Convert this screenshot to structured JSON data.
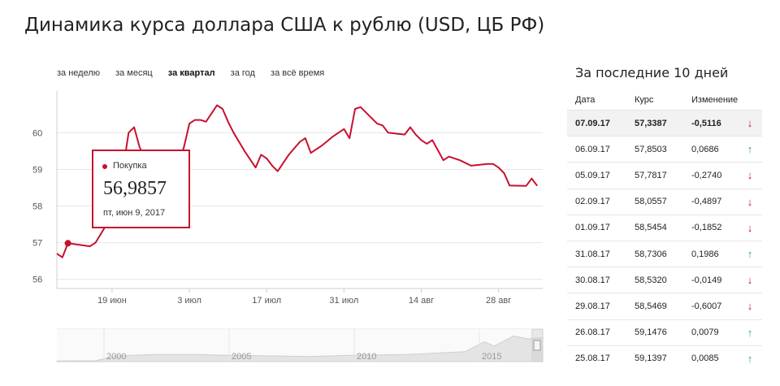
{
  "title": "Динамика курса доллара США к рублю (USD, ЦБ РФ)",
  "periods": [
    {
      "label": "за неделю",
      "active": false
    },
    {
      "label": "за месяц",
      "active": false
    },
    {
      "label": "за квартал",
      "active": true
    },
    {
      "label": "за год",
      "active": false
    },
    {
      "label": "за всё время",
      "active": false
    }
  ],
  "tooltip": {
    "label": "Покупка",
    "value": "56,9857",
    "date": "пт, июн 9, 2017"
  },
  "colors": {
    "line": "#c8102e",
    "grid": "#e6e6e6",
    "up": "#3aa84a",
    "down": "#c8102e"
  },
  "chart_data": {
    "type": "line",
    "title": "",
    "xlabel": "",
    "ylabel": "",
    "ylim": [
      55.75,
      61.05
    ],
    "y_ticks": [
      "56",
      "57",
      "58",
      "59",
      "60"
    ],
    "x_tick_labels": [
      "19 июн",
      "3 июл",
      "17 июл",
      "31 июл",
      "14 авг",
      "28 авг"
    ],
    "x_tick_days": [
      10,
      24,
      38,
      52,
      66,
      80
    ],
    "x_range_days": [
      0,
      88
    ],
    "series": [
      {
        "x": [
          0,
          1,
          2,
          6,
          7,
          9,
          12,
          13,
          14,
          15,
          16,
          20,
          21,
          22,
          23,
          24,
          25,
          26,
          27,
          29,
          30,
          31,
          32,
          34,
          36,
          37,
          38,
          39,
          40,
          42,
          44,
          45,
          46,
          48,
          50,
          51,
          52,
          53,
          54,
          55,
          58,
          59,
          60,
          63,
          64,
          65,
          66,
          67,
          68,
          70,
          71,
          73,
          75,
          78,
          79,
          80,
          81,
          82,
          85,
          86,
          87
        ],
        "y": [
          56.7,
          56.6,
          56.9857,
          56.9,
          57.0,
          57.5,
          59.0,
          60.0,
          60.15,
          59.6,
          59.3,
          59.2,
          59.0,
          59.2,
          59.6,
          60.25,
          60.35,
          60.35,
          60.3,
          60.75,
          60.65,
          60.3,
          60.0,
          59.5,
          59.05,
          59.4,
          59.3,
          59.1,
          58.95,
          59.4,
          59.75,
          59.85,
          59.45,
          59.65,
          59.9,
          60.0,
          60.1,
          59.85,
          60.65,
          60.7,
          60.25,
          60.2,
          60.0,
          59.95,
          60.15,
          59.95,
          59.8,
          59.7,
          59.8,
          59.25,
          59.35,
          59.25,
          59.1,
          59.15,
          59.15,
          59.05,
          58.9,
          58.56,
          58.55,
          58.75,
          58.55
        ]
      }
    ]
  },
  "navigator": {
    "labels": [
      "2000",
      "2005",
      "2010",
      "2015"
    ]
  },
  "sidebar": {
    "title": "За последние 10 дней",
    "headers": [
      "Дата",
      "Курс",
      "Изменение"
    ],
    "rows": [
      {
        "date": "07.09.17",
        "rate": "57,3387",
        "change": "-0,5116",
        "dir": "down",
        "arrow": "↓"
      },
      {
        "date": "06.09.17",
        "rate": "57,8503",
        "change": "0,0686",
        "dir": "up",
        "arrow": "↑"
      },
      {
        "date": "05.09.17",
        "rate": "57,7817",
        "change": "-0,2740",
        "dir": "down",
        "arrow": "↓"
      },
      {
        "date": "02.09.17",
        "rate": "58,0557",
        "change": "-0,4897",
        "dir": "down",
        "arrow": "↓"
      },
      {
        "date": "01.09.17",
        "rate": "58,5454",
        "change": "-0,1852",
        "dir": "down",
        "arrow": "↓"
      },
      {
        "date": "31.08.17",
        "rate": "58,7306",
        "change": "0,1986",
        "dir": "up",
        "arrow": "↑"
      },
      {
        "date": "30.08.17",
        "rate": "58,5320",
        "change": "-0,0149",
        "dir": "down",
        "arrow": "↓"
      },
      {
        "date": "29.08.17",
        "rate": "58,5469",
        "change": "-0,6007",
        "dir": "down",
        "arrow": "↓"
      },
      {
        "date": "26.08.17",
        "rate": "59,1476",
        "change": "0,0079",
        "dir": "up",
        "arrow": "↑"
      },
      {
        "date": "25.08.17",
        "rate": "59,1397",
        "change": "0,0085",
        "dir": "up",
        "arrow": "↑"
      }
    ]
  }
}
